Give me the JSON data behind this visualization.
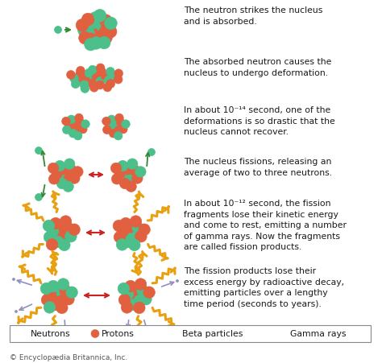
{
  "bg_color": "#ffffff",
  "neutron_color": "#4dbf8a",
  "proton_color": "#e06040",
  "beta_color": "#9090c0",
  "gamma_color": "#e8a010",
  "arrow_red": "#cc2222",
  "arrow_green": "#338833",
  "text_color": "#1a1a1a",
  "legend_border": "#999999",
  "copyright_text": "© Encyclopædia Britannica, Inc.",
  "desc0": "The neutron strikes the nucleus\nand is absorbed.",
  "desc1": "The absorbed neutron causes the\nnucleus to undergo deformation.",
  "desc2": "In about 10⁻¹⁴ second, one of the\ndeformations is so drastic that the\nnucleus cannot recover.",
  "desc3": "The nucleus fissions, releasing an\naverage of two to three neutrons.",
  "desc4": "In about 10⁻¹² second, the fission\nfragments lose their kinetic energy\nand come to rest, emitting a number\nof gamma rays. Now the fragments\nare called fission products.",
  "desc5": "The fission products lose their\nexcess energy by radioactive decay,\nemitting particles over a lengthy\ntime period (seconds to years).",
  "fig_width": 4.74,
  "fig_height": 4.52,
  "dpi": 100
}
